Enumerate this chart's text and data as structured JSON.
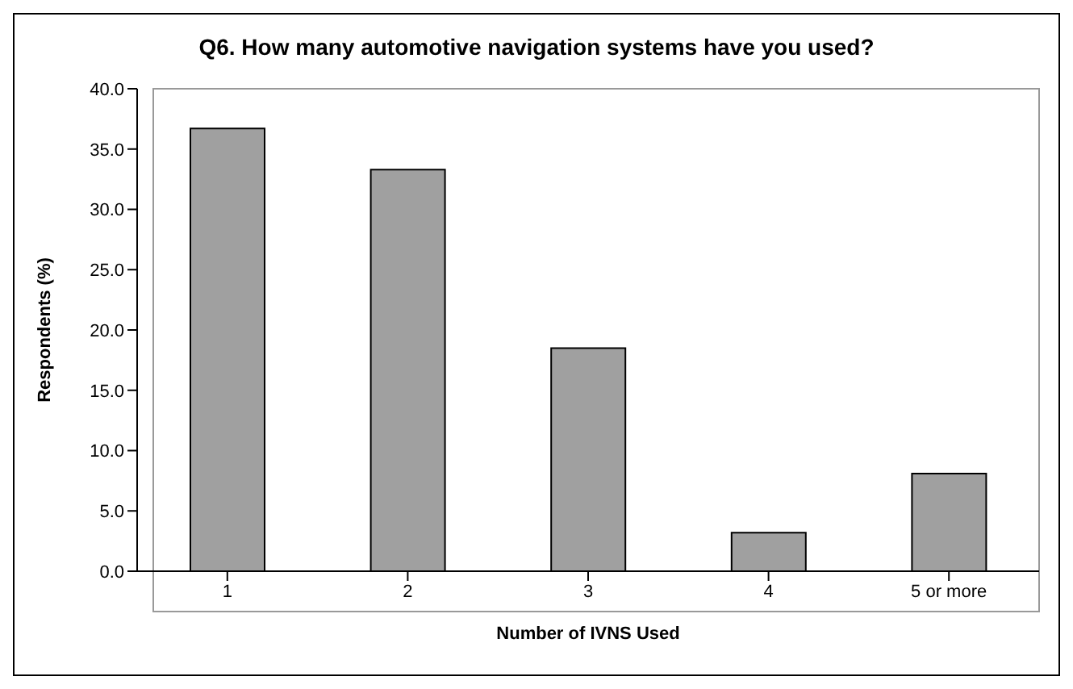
{
  "chart_data": {
    "type": "bar",
    "title": "Q6. How many automotive navigation systems have you used?",
    "xlabel": "Number of IVNS Used",
    "ylabel": "Respondents (%)",
    "categories": [
      "1",
      "2",
      "3",
      "4",
      "5 or more"
    ],
    "values": [
      36.7,
      33.3,
      18.5,
      3.2,
      8.1
    ],
    "color": "#a0a0a0",
    "ylim": [
      0,
      40
    ],
    "yticks": [
      {
        "value": 0,
        "label": "0.0"
      },
      {
        "value": 5,
        "label": "5.0"
      },
      {
        "value": 10,
        "label": "10.0"
      },
      {
        "value": 15,
        "label": "15.0"
      },
      {
        "value": 20,
        "label": "20.0"
      },
      {
        "value": 25,
        "label": "25.0"
      },
      {
        "value": 30,
        "label": "30.0"
      },
      {
        "value": 35,
        "label": "35.0"
      },
      {
        "value": 40,
        "label": "40.0"
      }
    ],
    "grid": false,
    "legend": false
  }
}
